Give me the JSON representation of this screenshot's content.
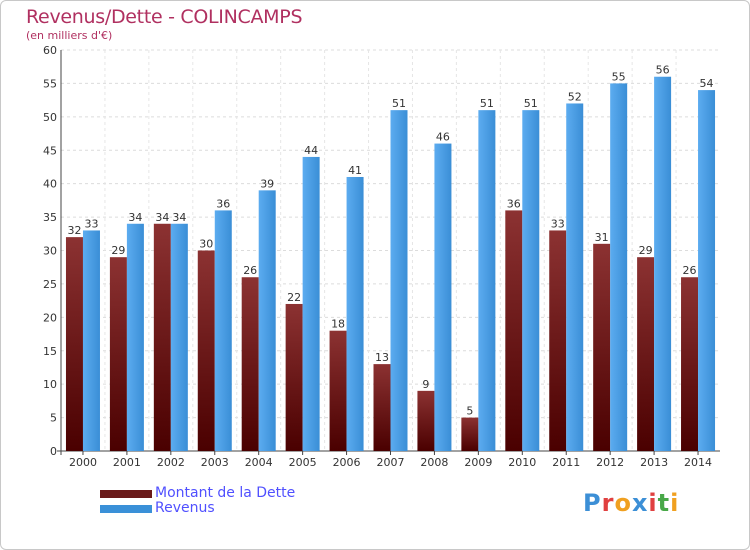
{
  "title": "Revenus/Dette - COLINCAMPS",
  "subtitle": "(en milliers d'€)",
  "brand": {
    "text": "Proxiti",
    "letter_colors": [
      "#3c8fd6",
      "#e04040",
      "#f0a020",
      "#3c8fd6",
      "#e04040",
      "#48a848",
      "#f0a020"
    ]
  },
  "legend": [
    {
      "label": "Montant de la Dette",
      "color": "#6a1a1a"
    },
    {
      "label": "Revenus",
      "color": "#3a90d8"
    }
  ],
  "chart_data": {
    "type": "bar",
    "categories": [
      "2000",
      "2001",
      "2002",
      "2003",
      "2004",
      "2005",
      "2006",
      "2007",
      "2008",
      "2009",
      "2010",
      "2011",
      "2012",
      "2013",
      "2014"
    ],
    "series": [
      {
        "name": "Montant de la Dette",
        "color": "#6a1a1a",
        "values": [
          32,
          29,
          34,
          30,
          26,
          22,
          18,
          13,
          9,
          5,
          36,
          33,
          31,
          29,
          26
        ]
      },
      {
        "name": "Revenus",
        "color": "#3a90d8",
        "values": [
          33,
          34,
          34,
          36,
          39,
          44,
          41,
          51,
          46,
          51,
          51,
          52,
          55,
          56,
          54
        ]
      }
    ],
    "ylim": [
      0,
      60
    ],
    "yticks": [
      0,
      5,
      10,
      15,
      20,
      25,
      30,
      35,
      40,
      45,
      50,
      55,
      60
    ],
    "grid": true,
    "legend_position": "bottom-left"
  }
}
